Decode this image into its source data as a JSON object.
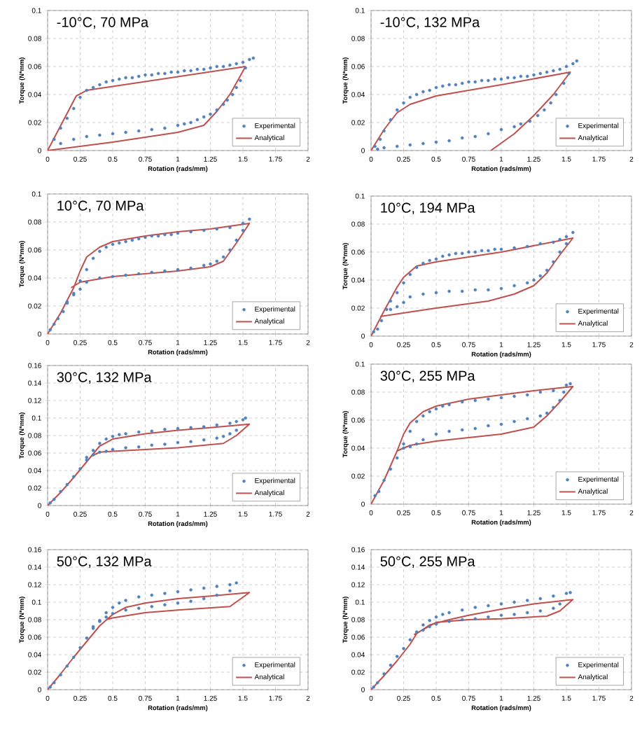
{
  "chart_data": [
    {
      "type": "scatter",
      "title": "-10°C, 70 MPa",
      "xlabel": "Rotation (rads/mm)",
      "ylabel": "Torque (N*mm)",
      "xlim": [
        0,
        2
      ],
      "xticks": [
        0,
        0.25,
        0.5,
        0.75,
        1,
        1.25,
        1.5,
        1.75,
        2
      ],
      "ylim": [
        0,
        0.1
      ],
      "yticks": [
        0,
        0.02,
        0.04,
        0.06,
        0.08,
        0.1
      ],
      "grid": true,
      "legend": "bottom right",
      "series": [
        {
          "name": "Experimental",
          "marker": "circle",
          "color": "#4f81bd",
          "x": [
            0.05,
            0.1,
            0.15,
            0.2,
            0.25,
            0.3,
            0.35,
            0.4,
            0.45,
            0.5,
            0.55,
            0.6,
            0.65,
            0.7,
            0.75,
            0.8,
            0.85,
            0.9,
            0.95,
            1.0,
            1.05,
            1.1,
            1.15,
            1.2,
            1.25,
            1.3,
            1.35,
            1.4,
            1.45,
            1.5,
            1.55,
            1.58,
            1.52,
            1.48,
            1.45,
            1.42,
            1.38,
            1.35,
            1.3,
            1.25,
            1.2,
            1.15,
            1.1,
            1.05,
            1.0,
            0.9,
            0.8,
            0.7,
            0.6,
            0.5,
            0.4,
            0.3,
            0.2,
            0.1
          ],
          "values": [
            0.008,
            0.016,
            0.023,
            0.03,
            0.038,
            0.043,
            0.045,
            0.047,
            0.049,
            0.05,
            0.051,
            0.052,
            0.052,
            0.053,
            0.054,
            0.054,
            0.055,
            0.055,
            0.056,
            0.056,
            0.057,
            0.057,
            0.058,
            0.058,
            0.059,
            0.06,
            0.06,
            0.061,
            0.062,
            0.063,
            0.065,
            0.066,
            0.059,
            0.05,
            0.045,
            0.04,
            0.036,
            0.033,
            0.029,
            0.026,
            0.024,
            0.022,
            0.02,
            0.019,
            0.018,
            0.016,
            0.015,
            0.014,
            0.013,
            0.012,
            0.011,
            0.01,
            0.008,
            0.005
          ]
        },
        {
          "name": "Analytical",
          "type": "line",
          "marker": "none",
          "color": "#c0504d",
          "x": [
            0,
            0.22,
            0.3,
            1.52
          ],
          "values": [
            0,
            0.039,
            0.043,
            0.06
          ]
        },
        {
          "type": "line",
          "marker": "none",
          "color": "#c0504d",
          "x": [
            1.52,
            1.4,
            1.3,
            1.2,
            1.0,
            0.5,
            0
          ],
          "values": [
            0.06,
            0.04,
            0.028,
            0.018,
            0.013,
            0.006,
            0
          ]
        }
      ]
    },
    {
      "type": "scatter",
      "title": "-10°C, 132 MPa",
      "xlabel": "Rotation (rads/mm)",
      "ylabel": "Torque (N*mm)",
      "xlim": [
        0,
        2
      ],
      "xticks": [
        0,
        0.25,
        0.5,
        0.75,
        1,
        1.25,
        1.5,
        1.75,
        2
      ],
      "ylim": [
        0,
        0.1
      ],
      "yticks": [
        0,
        0.02,
        0.04,
        0.06,
        0.08,
        0.1
      ],
      "grid": true,
      "legend": "bottom right",
      "series": [
        {
          "name": "Experimental",
          "marker": "circle",
          "color": "#4f81bd",
          "x": [
            0.03,
            0.07,
            0.1,
            0.15,
            0.2,
            0.25,
            0.3,
            0.35,
            0.4,
            0.45,
            0.5,
            0.55,
            0.6,
            0.65,
            0.7,
            0.75,
            0.8,
            0.85,
            0.9,
            0.95,
            1.0,
            1.05,
            1.1,
            1.15,
            1.2,
            1.25,
            1.3,
            1.35,
            1.4,
            1.45,
            1.5,
            1.55,
            1.58,
            1.52,
            1.48,
            1.42,
            1.38,
            1.33,
            1.28,
            1.22,
            1.15,
            1.1,
            1.0,
            0.9,
            0.8,
            0.7,
            0.6,
            0.5,
            0.4,
            0.3,
            0.2,
            0.1,
            0.05
          ],
          "values": [
            0.003,
            0.008,
            0.014,
            0.022,
            0.029,
            0.034,
            0.038,
            0.04,
            0.042,
            0.043,
            0.045,
            0.046,
            0.047,
            0.047,
            0.048,
            0.049,
            0.049,
            0.05,
            0.05,
            0.051,
            0.051,
            0.052,
            0.052,
            0.053,
            0.053,
            0.054,
            0.055,
            0.056,
            0.057,
            0.058,
            0.06,
            0.062,
            0.064,
            0.055,
            0.048,
            0.04,
            0.034,
            0.029,
            0.025,
            0.021,
            0.019,
            0.017,
            0.015,
            0.012,
            0.01,
            0.009,
            0.007,
            0.006,
            0.005,
            0.004,
            0.003,
            0.002,
            0.001
          ]
        },
        {
          "name": "Analytical",
          "type": "line",
          "marker": "none",
          "color": "#c0504d",
          "x": [
            0,
            0.1,
            0.2,
            0.3,
            0.5,
            1.0,
            1.53,
            1.4,
            1.25,
            1.1,
            0.95,
            0.92
          ],
          "values": [
            0,
            0.015,
            0.027,
            0.033,
            0.039,
            0.047,
            0.056,
            0.04,
            0.025,
            0.012,
            0.002,
            0
          ]
        }
      ]
    },
    {
      "type": "scatter",
      "title": "10°C, 70 MPa",
      "xlabel": "Rotation (rads/mm)",
      "ylabel": "Torque (N*mm)",
      "xlim": [
        0,
        2
      ],
      "xticks": [
        0,
        0.25,
        0.5,
        0.75,
        1,
        1.25,
        1.5,
        1.75,
        2
      ],
      "ylim": [
        0,
        0.1
      ],
      "yticks": [
        0,
        0.02,
        0.04,
        0.06,
        0.08,
        0.1
      ],
      "grid": true,
      "legend": "bottom right",
      "series": [
        {
          "name": "Experimental",
          "marker": "circle",
          "color": "#4f81bd",
          "x": [
            0.02,
            0.05,
            0.08,
            0.12,
            0.15,
            0.2,
            0.25,
            0.3,
            0.35,
            0.4,
            0.45,
            0.5,
            0.55,
            0.6,
            0.65,
            0.7,
            0.75,
            0.8,
            0.85,
            0.9,
            0.95,
            1.0,
            1.1,
            1.2,
            1.3,
            1.4,
            1.5,
            1.55,
            1.5,
            1.45,
            1.4,
            1.35,
            1.3,
            1.25,
            1.2,
            1.1,
            1.0,
            0.9,
            0.8,
            0.7,
            0.6,
            0.5,
            0.4,
            0.3,
            0.25,
            0.2,
            0.15
          ],
          "values": [
            0.003,
            0.007,
            0.011,
            0.016,
            0.022,
            0.029,
            0.038,
            0.046,
            0.054,
            0.059,
            0.062,
            0.064,
            0.065,
            0.066,
            0.067,
            0.068,
            0.069,
            0.07,
            0.07,
            0.071,
            0.071,
            0.072,
            0.073,
            0.074,
            0.075,
            0.076,
            0.079,
            0.082,
            0.074,
            0.067,
            0.06,
            0.055,
            0.052,
            0.05,
            0.049,
            0.047,
            0.046,
            0.045,
            0.044,
            0.043,
            0.042,
            0.041,
            0.04,
            0.037,
            0.032,
            0.028,
            0.023
          ]
        },
        {
          "name": "Analytical",
          "type": "line",
          "marker": "none",
          "color": "#c0504d",
          "x": [
            0,
            0.1,
            0.2,
            0.25,
            0.3,
            0.4,
            0.5,
            0.75,
            1.0,
            1.25,
            1.55,
            1.45,
            1.35,
            1.25,
            1.0,
            0.5,
            0.25,
            0.18
          ],
          "values": [
            0,
            0.015,
            0.033,
            0.045,
            0.055,
            0.062,
            0.066,
            0.07,
            0.073,
            0.075,
            0.079,
            0.065,
            0.052,
            0.048,
            0.045,
            0.041,
            0.037,
            0.033
          ]
        }
      ]
    },
    {
      "type": "scatter",
      "title": "10°C, 194 MPa",
      "xlabel": "Rotation (rads/mm)",
      "ylabel": "Torque (N*mm)",
      "xlim": [
        0,
        2
      ],
      "xticks": [
        0,
        0.25,
        0.5,
        0.75,
        1,
        1.25,
        1.5,
        1.75,
        2
      ],
      "ylim": [
        0,
        0.1
      ],
      "yticks": [
        0,
        0.02,
        0.04,
        0.06,
        0.08,
        0.1
      ],
      "grid": true,
      "legend": "bottom right",
      "series": [
        {
          "name": "Experimental",
          "marker": "circle",
          "color": "#4f81bd",
          "x": [
            0.02,
            0.05,
            0.08,
            0.12,
            0.15,
            0.2,
            0.25,
            0.3,
            0.35,
            0.4,
            0.45,
            0.5,
            0.55,
            0.6,
            0.65,
            0.7,
            0.75,
            0.8,
            0.85,
            0.9,
            0.95,
            1.0,
            1.1,
            1.2,
            1.3,
            1.4,
            1.45,
            1.5,
            1.55,
            1.5,
            1.45,
            1.4,
            1.35,
            1.3,
            1.25,
            1.2,
            1.1,
            1.0,
            0.9,
            0.8,
            0.7,
            0.6,
            0.5,
            0.4,
            0.3,
            0.25,
            0.2,
            0.15
          ],
          "values": [
            0.003,
            0.005,
            0.011,
            0.019,
            0.025,
            0.031,
            0.038,
            0.044,
            0.049,
            0.052,
            0.054,
            0.055,
            0.057,
            0.058,
            0.059,
            0.059,
            0.06,
            0.06,
            0.061,
            0.061,
            0.062,
            0.062,
            0.063,
            0.064,
            0.066,
            0.067,
            0.069,
            0.071,
            0.074,
            0.066,
            0.06,
            0.053,
            0.047,
            0.043,
            0.04,
            0.038,
            0.036,
            0.034,
            0.033,
            0.033,
            0.032,
            0.032,
            0.031,
            0.03,
            0.028,
            0.024,
            0.021,
            0.019
          ]
        },
        {
          "name": "Analytical",
          "type": "line",
          "marker": "none",
          "color": "#c0504d",
          "x": [
            0,
            0.1,
            0.2,
            0.25,
            0.35,
            0.5,
            1.0,
            1.55,
            1.45,
            1.35,
            1.25,
            1.1,
            0.9,
            0.5,
            0.07
          ],
          "values": [
            0,
            0.018,
            0.035,
            0.042,
            0.05,
            0.053,
            0.06,
            0.07,
            0.058,
            0.045,
            0.036,
            0.03,
            0.025,
            0.02,
            0.014
          ]
        }
      ]
    },
    {
      "type": "scatter",
      "title": "30°C, 132 MPa",
      "xlabel": "Rotation (rads/mm)",
      "ylabel": "Torque (N*mm)",
      "xlim": [
        0,
        2
      ],
      "xticks": [
        0,
        0.25,
        0.5,
        0.75,
        1,
        1.25,
        1.5,
        1.75,
        2
      ],
      "ylim": [
        0,
        0.16
      ],
      "yticks": [
        0,
        0.02,
        0.04,
        0.06,
        0.08,
        0.1,
        0.12,
        0.14,
        0.16
      ],
      "grid": true,
      "legend": "bottom right",
      "series": [
        {
          "name": "Experimental",
          "marker": "circle",
          "color": "#4f81bd",
          "x": [
            0.02,
            0.05,
            0.1,
            0.15,
            0.2,
            0.25,
            0.3,
            0.35,
            0.4,
            0.45,
            0.5,
            0.55,
            0.6,
            0.7,
            0.8,
            0.9,
            1.0,
            1.1,
            1.2,
            1.3,
            1.4,
            1.45,
            1.5,
            1.52,
            1.45,
            1.4,
            1.35,
            1.3,
            1.2,
            1.1,
            1.0,
            0.9,
            0.8,
            0.7,
            0.6,
            0.5,
            0.45,
            0.4,
            0.35,
            0.3
          ],
          "values": [
            0.003,
            0.007,
            0.016,
            0.024,
            0.033,
            0.042,
            0.052,
            0.063,
            0.071,
            0.076,
            0.079,
            0.081,
            0.082,
            0.084,
            0.085,
            0.087,
            0.088,
            0.089,
            0.09,
            0.092,
            0.094,
            0.096,
            0.098,
            0.1,
            0.086,
            0.082,
            0.079,
            0.077,
            0.075,
            0.073,
            0.072,
            0.07,
            0.069,
            0.067,
            0.066,
            0.064,
            0.062,
            0.061,
            0.058,
            0.055
          ]
        },
        {
          "name": "Analytical",
          "type": "line",
          "marker": "none",
          "color": "#c0504d",
          "x": [
            0,
            0.1,
            0.2,
            0.3,
            0.4,
            0.5,
            0.75,
            1.0,
            1.25,
            1.55,
            1.45,
            1.35,
            1.0,
            0.5,
            0.4,
            0.33
          ],
          "values": [
            0,
            0.015,
            0.032,
            0.05,
            0.068,
            0.076,
            0.082,
            0.086,
            0.089,
            0.093,
            0.08,
            0.071,
            0.066,
            0.062,
            0.061,
            0.056
          ]
        }
      ]
    },
    {
      "type": "scatter",
      "title": "30°C, 255 MPa",
      "xlabel": "Rotation (rads/mm)",
      "ylabel": "Torque (N*mm)",
      "xlim": [
        0,
        2
      ],
      "xticks": [
        0,
        0.25,
        0.5,
        0.75,
        1,
        1.25,
        1.5,
        1.75,
        2
      ],
      "ylim": [
        0,
        0.1
      ],
      "yticks": [
        0,
        0.02,
        0.04,
        0.06,
        0.08,
        0.1
      ],
      "grid": true,
      "legend": "bottom right",
      "series": [
        {
          "name": "Experimental",
          "marker": "circle",
          "color": "#4f81bd",
          "x": [
            0.03,
            0.06,
            0.1,
            0.15,
            0.2,
            0.25,
            0.3,
            0.35,
            0.4,
            0.45,
            0.5,
            0.55,
            0.6,
            0.7,
            0.8,
            0.9,
            1.0,
            1.1,
            1.2,
            1.3,
            1.4,
            1.5,
            1.53,
            1.48,
            1.45,
            1.4,
            1.35,
            1.3,
            1.2,
            1.1,
            1.0,
            0.9,
            0.8,
            0.7,
            0.6,
            0.5,
            0.4,
            0.35,
            0.3,
            0.25
          ],
          "values": [
            0.006,
            0.009,
            0.017,
            0.025,
            0.033,
            0.043,
            0.052,
            0.059,
            0.063,
            0.066,
            0.068,
            0.07,
            0.071,
            0.073,
            0.074,
            0.075,
            0.076,
            0.077,
            0.078,
            0.08,
            0.081,
            0.085,
            0.086,
            0.08,
            0.074,
            0.069,
            0.065,
            0.063,
            0.061,
            0.059,
            0.057,
            0.056,
            0.054,
            0.053,
            0.052,
            0.05,
            0.046,
            0.043,
            0.041,
            0.04
          ]
        },
        {
          "name": "Analytical",
          "type": "line",
          "marker": "none",
          "color": "#c0504d",
          "x": [
            0,
            0.1,
            0.2,
            0.25,
            0.3,
            0.4,
            0.5,
            0.75,
            1.0,
            1.25,
            1.55,
            1.45,
            1.35,
            1.25,
            1.0,
            0.5,
            0.3,
            0.2
          ],
          "values": [
            0,
            0.017,
            0.038,
            0.05,
            0.058,
            0.066,
            0.07,
            0.075,
            0.078,
            0.081,
            0.084,
            0.073,
            0.063,
            0.055,
            0.05,
            0.045,
            0.042,
            0.038
          ]
        }
      ]
    },
    {
      "type": "scatter",
      "title": "50°C, 132 MPa",
      "xlabel": "Rotation (rads/mm)",
      "ylabel": "Torque (N*mm)",
      "xlim": [
        0,
        2
      ],
      "xticks": [
        0,
        0.25,
        0.5,
        0.75,
        1,
        1.25,
        1.5,
        1.75,
        2
      ],
      "ylim": [
        0,
        0.16
      ],
      "yticks": [
        0,
        0.02,
        0.04,
        0.06,
        0.08,
        0.1,
        0.12,
        0.14,
        0.16
      ],
      "grid": true,
      "legend": "bottom right",
      "series": [
        {
          "name": "Experimental",
          "marker": "circle",
          "color": "#4f81bd",
          "x": [
            0.02,
            0.05,
            0.1,
            0.15,
            0.2,
            0.25,
            0.3,
            0.35,
            0.4,
            0.45,
            0.5,
            0.55,
            0.6,
            0.7,
            0.8,
            0.9,
            1.0,
            1.1,
            1.2,
            1.3,
            1.4,
            1.45,
            1.4,
            1.3,
            1.2,
            1.1,
            1.0,
            0.9,
            0.8,
            0.7,
            0.6,
            0.5,
            0.45,
            0.4,
            0.35
          ],
          "values": [
            0.003,
            0.008,
            0.017,
            0.027,
            0.037,
            0.048,
            0.059,
            0.07,
            0.079,
            0.088,
            0.094,
            0.099,
            0.102,
            0.106,
            0.108,
            0.11,
            0.112,
            0.114,
            0.116,
            0.118,
            0.12,
            0.122,
            0.113,
            0.108,
            0.104,
            0.101,
            0.099,
            0.097,
            0.095,
            0.093,
            0.091,
            0.087,
            0.083,
            0.078,
            0.072
          ]
        },
        {
          "name": "Analytical",
          "type": "line",
          "marker": "none",
          "color": "#c0504d",
          "x": [
            0,
            0.1,
            0.2,
            0.3,
            0.4,
            0.5,
            0.6,
            0.75,
            1.0,
            1.25,
            1.55,
            1.4,
            1.0,
            0.75,
            0.5,
            0.45
          ],
          "values": [
            0,
            0.018,
            0.037,
            0.055,
            0.073,
            0.086,
            0.094,
            0.099,
            0.104,
            0.107,
            0.111,
            0.095,
            0.091,
            0.088,
            0.082,
            0.08
          ]
        }
      ]
    },
    {
      "type": "scatter",
      "title": "50°C, 255 MPa",
      "xlabel": "Rotation (rads/mm)",
      "ylabel": "Torque (N*mm)",
      "xlim": [
        0,
        2
      ],
      "xticks": [
        0,
        0.25,
        0.5,
        0.75,
        1,
        1.25,
        1.5,
        1.75,
        2
      ],
      "ylim": [
        0,
        0.16
      ],
      "yticks": [
        0,
        0.02,
        0.04,
        0.06,
        0.08,
        0.1,
        0.12,
        0.14,
        0.16
      ],
      "grid": true,
      "legend": "bottom right",
      "series": [
        {
          "name": "Experimental",
          "marker": "circle",
          "color": "#4f81bd",
          "x": [
            0.02,
            0.05,
            0.1,
            0.15,
            0.2,
            0.25,
            0.3,
            0.35,
            0.4,
            0.45,
            0.5,
            0.55,
            0.6,
            0.7,
            0.8,
            0.9,
            1.0,
            1.1,
            1.2,
            1.3,
            1.4,
            1.5,
            1.53,
            1.45,
            1.4,
            1.3,
            1.2,
            1.1,
            1.0,
            0.9,
            0.8,
            0.7,
            0.6,
            0.5,
            0.45,
            0.4
          ],
          "values": [
            0.003,
            0.008,
            0.018,
            0.028,
            0.038,
            0.047,
            0.057,
            0.066,
            0.074,
            0.079,
            0.083,
            0.086,
            0.088,
            0.091,
            0.094,
            0.096,
            0.098,
            0.1,
            0.102,
            0.104,
            0.107,
            0.11,
            0.111,
            0.098,
            0.093,
            0.09,
            0.088,
            0.086,
            0.085,
            0.083,
            0.081,
            0.08,
            0.078,
            0.075,
            0.072,
            0.068
          ]
        },
        {
          "name": "Analytical",
          "type": "line",
          "marker": "none",
          "color": "#c0504d",
          "x": [
            0,
            0.1,
            0.2,
            0.3,
            0.35,
            0.45,
            0.6,
            0.75,
            1.0,
            1.25,
            1.55,
            1.45,
            1.35,
            1.0,
            0.75,
            0.5,
            0.33
          ],
          "values": [
            0,
            0.016,
            0.033,
            0.052,
            0.064,
            0.074,
            0.08,
            0.085,
            0.092,
            0.098,
            0.103,
            0.09,
            0.084,
            0.081,
            0.08,
            0.077,
            0.063
          ]
        }
      ]
    }
  ]
}
